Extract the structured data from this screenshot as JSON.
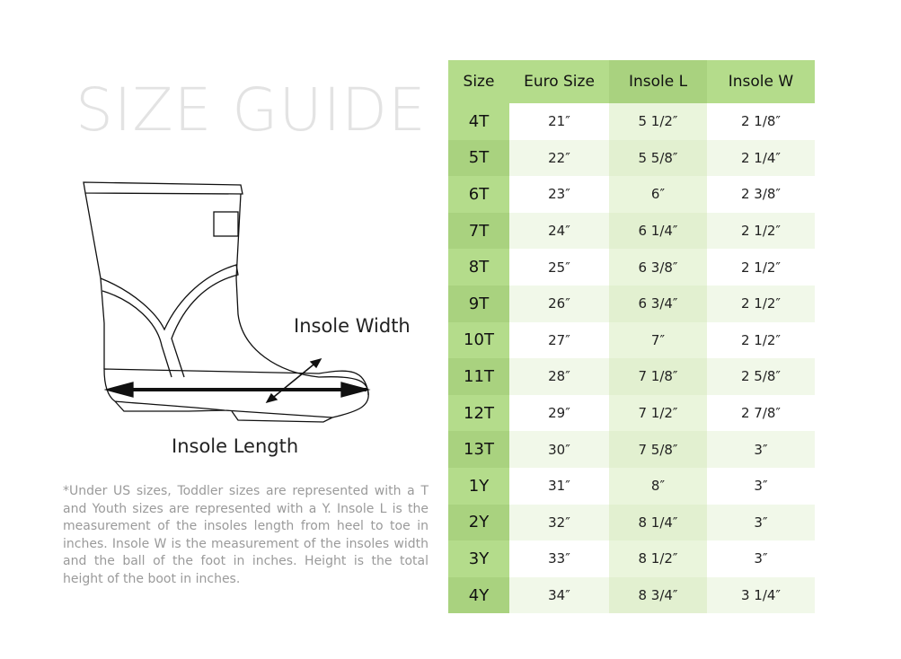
{
  "title": "SIZE GUIDE",
  "diagram": {
    "insole_width_label": "Insole Width",
    "insole_length_label": "Insole Length"
  },
  "note": "*Under US sizes, Toddler sizes are represented with a T and Youth sizes are represented with a Y. Insole L is the measurement of the insoles length from heel to toe in inches. Insole W is the measurement of the insoles width and the ball of the foot in inches. Height is the total height of the boot in inches.",
  "colors": {
    "header_green": "#b4dc8b",
    "dark_green": "#a9d27f",
    "light_green": "#eaf5dc",
    "title_gray": "#e3e3e3"
  },
  "table": {
    "headers": [
      "Size",
      "Euro Size",
      "Insole L",
      "Insole W"
    ],
    "rows": [
      [
        "4T",
        "21″",
        "5 1/2″",
        "2 1/8″"
      ],
      [
        "5T",
        "22″",
        "5 5/8″",
        "2 1/4″"
      ],
      [
        "6T",
        "23″",
        "6″",
        "2 3/8″"
      ],
      [
        "7T",
        "24″",
        "6 1/4″",
        "2 1/2″"
      ],
      [
        "8T",
        "25″",
        "6 3/8″",
        "2 1/2″"
      ],
      [
        "9T",
        "26″",
        "6 3/4″",
        "2 1/2″"
      ],
      [
        "10T",
        "27″",
        "7″",
        "2 1/2″"
      ],
      [
        "11T",
        "28″",
        "7 1/8″",
        "2 5/8″"
      ],
      [
        "12T",
        "29″",
        "7 1/2″",
        "2 7/8″"
      ],
      [
        "13T",
        "30″",
        "7 5/8″",
        "3″"
      ],
      [
        "1Y",
        "31″",
        "8″",
        "3″"
      ],
      [
        "2Y",
        "32″",
        "8 1/4″",
        "3″"
      ],
      [
        "3Y",
        "33″",
        "8 1/2″",
        "3″"
      ],
      [
        "4Y",
        "34″",
        "8 3/4″",
        "3 1/4″"
      ]
    ]
  }
}
